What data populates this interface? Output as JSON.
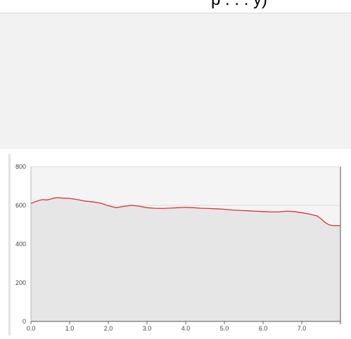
{
  "header": {
    "title_fragment": "p . . . y)"
  },
  "chart_data": {
    "type": "area",
    "title": "",
    "xlabel": "",
    "ylabel": "",
    "xlim": [
      0.0,
      8.0
    ],
    "ylim": [
      0,
      800
    ],
    "x_ticks": [
      "0.0",
      "1.0",
      "2.0",
      "3.0",
      "4.0",
      "5.0",
      "6.0",
      "7.0"
    ],
    "y_ticks": [
      "0",
      "200",
      "400",
      "600",
      "800"
    ],
    "grid": true,
    "line_color": "#d9343b",
    "fill_color": "#e6e6e6",
    "series": [
      {
        "x": [
          0.0,
          0.1,
          0.2,
          0.3,
          0.4,
          0.5,
          0.6,
          0.7,
          0.8,
          1.0,
          1.2,
          1.4,
          1.6,
          1.8,
          2.0,
          2.2,
          2.4,
          2.6,
          2.8,
          3.0,
          3.2,
          3.4,
          3.6,
          3.8,
          4.0,
          4.2,
          4.4,
          4.6,
          4.8,
          5.0,
          5.2,
          5.4,
          5.6,
          5.8,
          6.0,
          6.2,
          6.4,
          6.6,
          6.8,
          7.0,
          7.2,
          7.4,
          7.5,
          7.6,
          7.7,
          7.8,
          7.9,
          8.0
        ],
        "values": [
          610,
          618,
          625,
          630,
          628,
          632,
          638,
          640,
          638,
          636,
          630,
          622,
          618,
          612,
          598,
          588,
          595,
          600,
          596,
          588,
          585,
          584,
          586,
          588,
          590,
          588,
          585,
          584,
          582,
          580,
          576,
          574,
          572,
          570,
          568,
          566,
          566,
          570,
          568,
          562,
          555,
          545,
          530,
          512,
          500,
          495,
          496,
          495
        ]
      }
    ]
  }
}
